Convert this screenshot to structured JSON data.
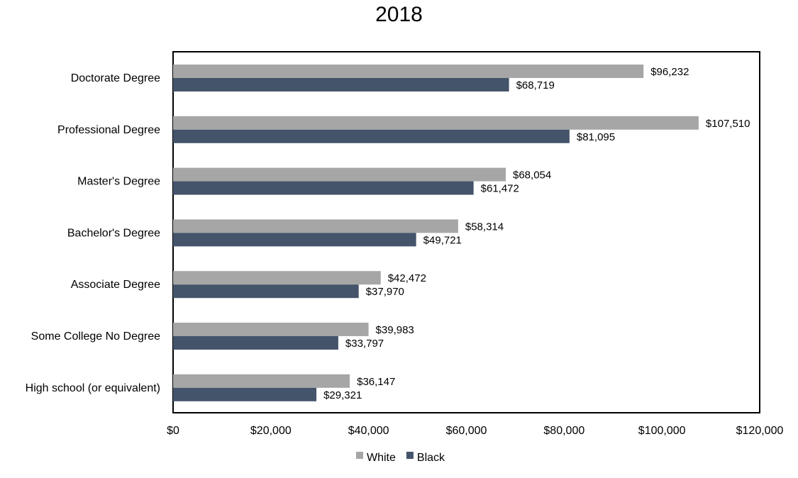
{
  "chart_data": {
    "type": "bar",
    "orientation": "horizontal",
    "title": "2018",
    "categories": [
      "Doctorate Degree",
      "Professional Degree",
      "Master's Degree",
      "Bachelor's Degree",
      "Associate Degree",
      "Some College No Degree",
      "High school (or equivalent)"
    ],
    "series": [
      {
        "name": "White",
        "color": "#a6a6a6",
        "values": [
          96232,
          107510,
          68054,
          58314,
          42472,
          39983,
          36147
        ],
        "labels": [
          "$96,232",
          "$107,510",
          "$68,054",
          "$58,314",
          "$42,472",
          "$39,983",
          "$36,147"
        ]
      },
      {
        "name": "Black",
        "color": "#44546a",
        "values": [
          68719,
          81095,
          61472,
          49721,
          37970,
          33797,
          29321
        ],
        "labels": [
          "$68,719",
          "$81,095",
          "$61,472",
          "$49,721",
          "$37,970",
          "$33,797",
          "$29,321"
        ]
      }
    ],
    "xlim": [
      0,
      120000
    ],
    "x_ticks": [
      0,
      20000,
      40000,
      60000,
      80000,
      100000,
      120000
    ],
    "x_tick_labels": [
      "$0",
      "$20,000",
      "$40,000",
      "$60,000",
      "$80,000",
      "$100,000",
      "$120,000"
    ],
    "grid": false,
    "legend_position": "bottom"
  }
}
